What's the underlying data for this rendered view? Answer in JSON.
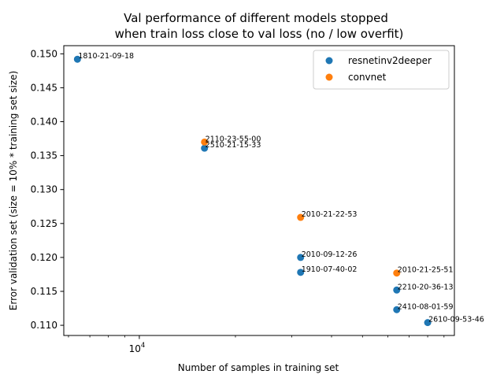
{
  "chart_data": {
    "type": "scatter",
    "title_line1": "Val performance of different models stopped",
    "title_line2": "when train loss close to val loss (no / low overfit)",
    "xlabel": "Number of samples in training set",
    "ylabel": "Error validation set (size = 10% * training set size)",
    "x_scale": "log",
    "xlim": [
      5800,
      97000
    ],
    "ylim": [
      0.1085,
      0.1512
    ],
    "x_major_tick": {
      "value": 10000,
      "base": "10",
      "exp": "4"
    },
    "x_minor_ticks": [
      6000,
      7000,
      8000,
      9000,
      20000,
      30000,
      40000,
      50000,
      60000,
      70000,
      80000,
      90000
    ],
    "y_ticks": [
      {
        "value": 0.11,
        "label": "0.110"
      },
      {
        "value": 0.115,
        "label": "0.115"
      },
      {
        "value": 0.12,
        "label": "0.120"
      },
      {
        "value": 0.125,
        "label": "0.125"
      },
      {
        "value": 0.13,
        "label": "0.130"
      },
      {
        "value": 0.135,
        "label": "0.135"
      },
      {
        "value": 0.14,
        "label": "0.140"
      },
      {
        "value": 0.145,
        "label": "0.145"
      },
      {
        "value": 0.15,
        "label": "0.150"
      }
    ],
    "legend_position": "top-right",
    "series": [
      {
        "name": "resnetinv2deeper",
        "color": "#1f77b4",
        "points": [
          {
            "x": 6400,
            "y": 0.1492,
            "label": "1810-21-09-18"
          },
          {
            "x": 16000,
            "y": 0.1361,
            "label": "2510-21-15-33"
          },
          {
            "x": 32000,
            "y": 0.12,
            "label": "2010-09-12-26"
          },
          {
            "x": 32000,
            "y": 0.1178,
            "label": "1910-07-40-02"
          },
          {
            "x": 64000,
            "y": 0.1152,
            "label": "2210-20-36-13"
          },
          {
            "x": 64000,
            "y": 0.1123,
            "label": "2410-08-01-59"
          },
          {
            "x": 80000,
            "y": 0.1104,
            "label": "2610-09-53-46"
          }
        ]
      },
      {
        "name": "convnet",
        "color": "#ff7f0e",
        "points": [
          {
            "x": 16000,
            "y": 0.137,
            "label": "2110-23-55-00"
          },
          {
            "x": 32000,
            "y": 0.1259,
            "label": "2010-21-22-53"
          },
          {
            "x": 64000,
            "y": 0.1177,
            "label": "2010-21-25-51"
          }
        ]
      }
    ]
  }
}
